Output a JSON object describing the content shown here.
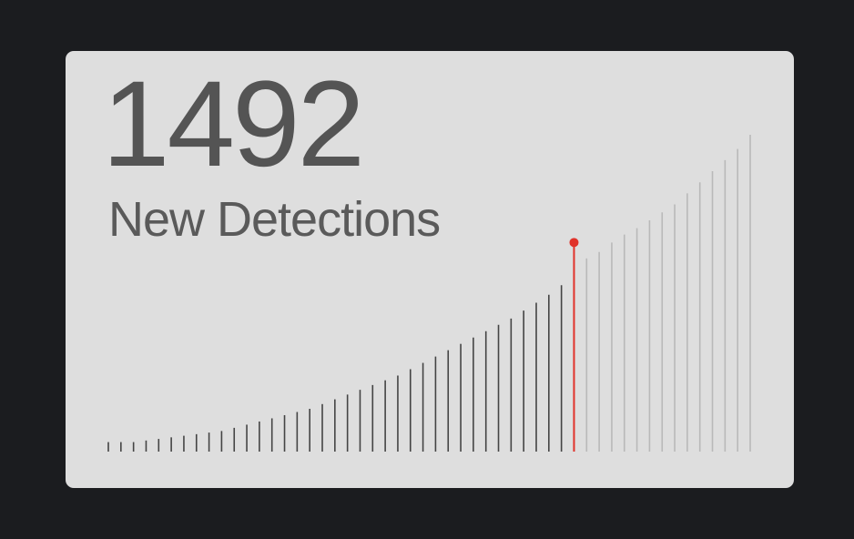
{
  "card": {
    "value": "1492",
    "label": "New Detections"
  },
  "colors": {
    "background": "#1b1c1f",
    "card": "#dedede",
    "past_bar": "#444444",
    "future_bar": "#b9b9b9",
    "highlight": "#e0322a"
  },
  "chart_data": {
    "type": "bar",
    "title": "",
    "xlabel": "",
    "ylabel": "",
    "grid": false,
    "legend": "none",
    "current_index": 37,
    "ylim": [
      0,
      100
    ],
    "values": [
      3,
      3,
      3,
      3.5,
      4,
      4.5,
      5,
      5.5,
      6,
      6.5,
      7.5,
      8.5,
      9.5,
      10.5,
      11.5,
      12.5,
      13.5,
      15,
      16.5,
      18,
      19.5,
      21,
      22.5,
      24,
      26,
      28,
      30,
      32,
      34,
      36,
      38,
      40,
      42,
      44.5,
      47,
      49.5,
      52.5,
      66,
      61,
      63,
      66,
      68.5,
      70.5,
      73,
      75.5,
      78,
      81.5,
      85,
      88.5,
      92,
      95.5,
      100
    ]
  }
}
